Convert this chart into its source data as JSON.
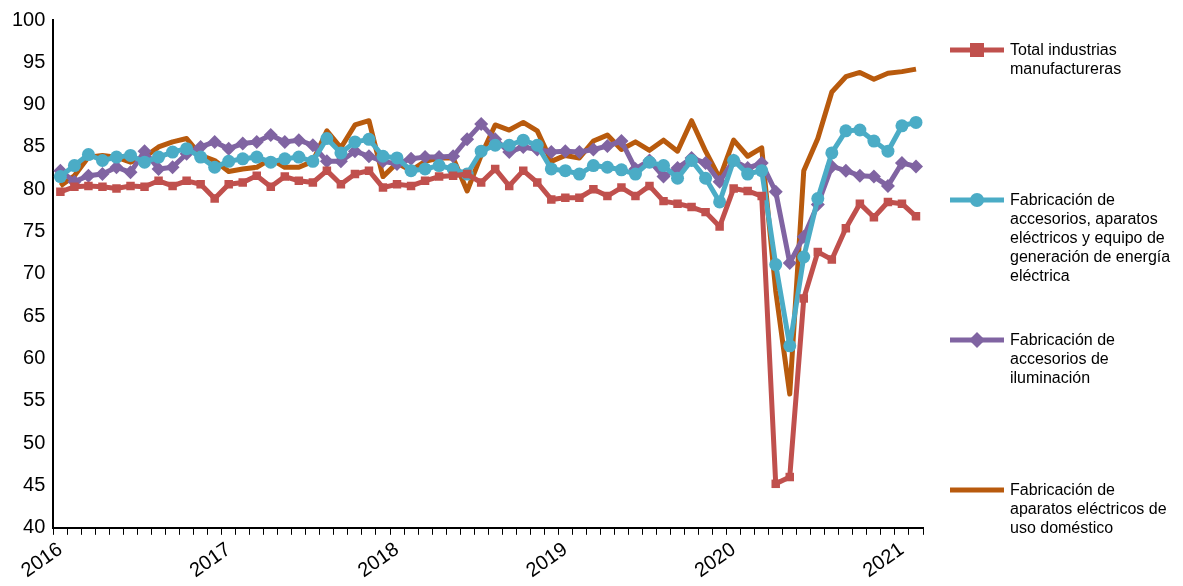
{
  "chart_data": {
    "type": "line",
    "categories": [
      "2016",
      null,
      null,
      null,
      null,
      null,
      null,
      null,
      null,
      null,
      null,
      null,
      "2017",
      null,
      null,
      null,
      null,
      null,
      null,
      null,
      null,
      null,
      null,
      null,
      "2018",
      null,
      null,
      null,
      null,
      null,
      null,
      null,
      null,
      null,
      null,
      null,
      "2019",
      null,
      null,
      null,
      null,
      null,
      null,
      null,
      null,
      null,
      null,
      null,
      "2020",
      null,
      null,
      null,
      null,
      null,
      null,
      null,
      null,
      null,
      null,
      null,
      "2021",
      null
    ],
    "ylim": [
      40,
      100
    ],
    "yticks": [
      40,
      45,
      50,
      55,
      60,
      65,
      70,
      75,
      80,
      85,
      90,
      95,
      100
    ],
    "grid": false,
    "legend": "right",
    "series": [
      {
        "name": "Total industrias manufactureras",
        "color": "#c0504d",
        "marker": "square",
        "values": [
          79.7,
          80.3,
          80.4,
          80.3,
          80.1,
          80.4,
          80.3,
          81.0,
          80.4,
          81.0,
          80.6,
          78.9,
          80.6,
          80.8,
          81.6,
          80.3,
          81.5,
          81.0,
          80.8,
          82.2,
          80.6,
          81.8,
          82.2,
          80.2,
          80.6,
          80.4,
          81.0,
          81.5,
          81.6,
          81.8,
          80.8,
          82.4,
          80.4,
          82.2,
          80.8,
          78.8,
          79.0,
          79.0,
          80.0,
          79.2,
          80.2,
          79.2,
          80.4,
          78.6,
          78.3,
          77.9,
          77.3,
          75.6,
          80.1,
          79.8,
          79.2,
          45.2,
          46.0,
          67.1,
          72.6,
          71.7,
          75.4,
          78.3,
          76.7,
          78.5,
          78.3,
          76.8
        ]
      },
      {
        "name": "Fabricación de accesorios, aparatos eléctricos y equipo de generación de energía eléctrica",
        "color": "#4bacc6",
        "marker": "circle",
        "values": [
          81.5,
          82.8,
          84.1,
          83.4,
          83.8,
          84.0,
          83.2,
          83.8,
          84.4,
          84.8,
          83.8,
          82.6,
          83.3,
          83.6,
          83.8,
          83.2,
          83.6,
          83.8,
          83.3,
          86.0,
          84.3,
          85.6,
          85.9,
          83.9,
          83.7,
          82.2,
          82.4,
          82.8,
          82.4,
          81.8,
          84.5,
          85.2,
          85.2,
          85.8,
          85.2,
          82.4,
          82.2,
          81.8,
          82.8,
          82.6,
          82.3,
          81.8,
          83.2,
          82.8,
          81.3,
          83.4,
          81.3,
          78.5,
          83.4,
          81.8,
          82.2,
          71.1,
          61.5,
          72.0,
          78.9,
          84.3,
          86.9,
          87.0,
          85.7,
          84.5,
          87.5,
          87.9
        ]
      },
      {
        "name": "Fabricación de accesorios de iluminación",
        "color": "#8064a2",
        "marker": "diamond",
        "values": [
          82.2,
          80.9,
          81.6,
          81.8,
          82.6,
          82.0,
          84.5,
          82.4,
          82.6,
          84.2,
          85.0,
          85.6,
          84.8,
          85.4,
          85.6,
          86.4,
          85.6,
          85.8,
          85.2,
          83.3,
          83.3,
          84.5,
          83.9,
          83.3,
          83.0,
          83.6,
          83.8,
          83.8,
          83.9,
          85.9,
          87.7,
          85.9,
          84.4,
          85.0,
          84.7,
          84.4,
          84.5,
          84.4,
          84.7,
          85.1,
          85.7,
          82.4,
          83.4,
          81.5,
          82.5,
          83.7,
          83.1,
          80.9,
          83.4,
          82.5,
          83.1,
          79.7,
          71.3,
          74.4,
          78.2,
          82.7,
          82.2,
          81.6,
          81.5,
          80.4,
          83.1,
          82.7
        ]
      },
      {
        "name": "Fabricación de aparatos eléctricos de uso doméstico",
        "color": "#b85a0d",
        "marker": "none",
        "values": [
          80.4,
          81.6,
          83.8,
          84.0,
          83.8,
          83.2,
          83.8,
          85.0,
          85.6,
          86.0,
          84.0,
          83.4,
          82.1,
          82.4,
          82.6,
          83.6,
          82.6,
          82.6,
          83.3,
          86.9,
          84.9,
          87.6,
          88.1,
          81.5,
          83.1,
          82.2,
          83.3,
          83.7,
          83.7,
          79.8,
          84.0,
          87.6,
          87.0,
          87.9,
          86.9,
          83.3,
          84.0,
          83.7,
          85.7,
          86.4,
          84.7,
          85.6,
          84.6,
          85.8,
          84.5,
          88.1,
          84.5,
          81.3,
          85.8,
          83.9,
          84.9,
          68.0,
          55.8,
          82.2,
          86.0,
          91.5,
          93.3,
          93.8,
          93.0,
          93.7,
          93.9,
          94.2
        ]
      }
    ]
  }
}
